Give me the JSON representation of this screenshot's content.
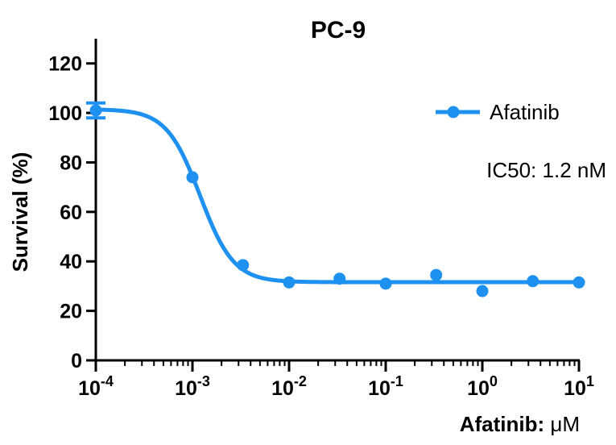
{
  "chart_data": {
    "type": "scatter",
    "title": "PC-9",
    "xlabel_main": "Afatinib: ",
    "xlabel_unit": "μM",
    "ylabel": "Survival (%)",
    "xscale": "log",
    "xlim": [
      0.0001,
      10
    ],
    "ylim": [
      0,
      130
    ],
    "x_ticks": [
      {
        "base": "10",
        "exp": "-4"
      },
      {
        "base": "10",
        "exp": "-3"
      },
      {
        "base": "10",
        "exp": "-2"
      },
      {
        "base": "10",
        "exp": "-1"
      },
      {
        "base": "10",
        "exp": "0"
      },
      {
        "base": "10",
        "exp": "1"
      }
    ],
    "y_ticks": [
      "0",
      "20",
      "40",
      "60",
      "80",
      "100",
      "120"
    ],
    "series": [
      {
        "name": "Afatinib",
        "color": "#1E90F0",
        "x": [
          0.0001,
          0.001,
          0.00333,
          0.01,
          0.0333,
          0.1,
          0.333,
          1,
          3.33,
          10
        ],
        "y": [
          101,
          74,
          38.5,
          31.5,
          33,
          31,
          34.5,
          28,
          32,
          31.5
        ],
        "error": [
          3,
          0,
          0,
          0,
          0,
          0,
          0,
          0,
          0,
          0
        ],
        "fit": {
          "top": 101.5,
          "bottom": 31.6,
          "ic50": 0.0012,
          "hill": 2.5
        }
      }
    ],
    "legend": {
      "label": "Afatinib",
      "position": "top-right"
    },
    "annotation": "IC50: 1.2  nM"
  }
}
